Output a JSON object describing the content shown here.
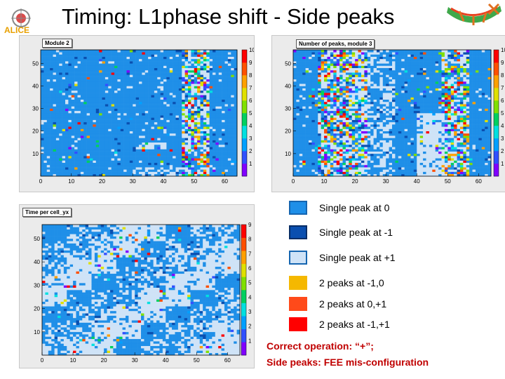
{
  "slide": {
    "title": "Timing: L1phase shift - Side peaks",
    "logo_text": "ALICE"
  },
  "colors": {
    "single_0": "#1f8fe8",
    "single_m1": "#0a4fb0",
    "single_p1": "#cfe3f7",
    "peaks_m1_0": "#f5b800",
    "peaks_0_p1": "#ff4a1a",
    "peaks_m1_p1": "#ff0000",
    "frame_bg": "#ebebeb"
  },
  "chart_data": [
    {
      "type": "heatmap",
      "title": "Module 2",
      "xlim": [
        0,
        64
      ],
      "ylim": [
        0,
        56
      ],
      "zlim": [
        0,
        10
      ],
      "x_ticks": [
        "0",
        "10",
        "20",
        "30",
        "40",
        "50",
        "60"
      ],
      "y_ticks": [
        "10",
        "20",
        "30",
        "40",
        "50"
      ],
      "z_ticks": [
        "1",
        "2",
        "3",
        "4",
        "5",
        "6",
        "7",
        "8",
        "9",
        "10"
      ],
      "colorbar": "right"
    },
    {
      "type": "heatmap",
      "title": "Number of peaks, module 3",
      "xlim": [
        0,
        64
      ],
      "ylim": [
        0,
        56
      ],
      "zlim": [
        0,
        10
      ],
      "x_ticks": [
        "0",
        "10",
        "20",
        "30",
        "40",
        "50",
        "60"
      ],
      "y_ticks": [
        "10",
        "20",
        "30",
        "40",
        "50"
      ],
      "z_ticks": [
        "1",
        "2",
        "3",
        "4",
        "5",
        "6",
        "7",
        "8",
        "9",
        "10"
      ],
      "colorbar": "right"
    },
    {
      "type": "heatmap",
      "title": "Time per cell_yx",
      "xlim": [
        0,
        64
      ],
      "ylim": [
        0,
        56
      ],
      "zlim": [
        0,
        9
      ],
      "x_ticks": [
        "0",
        "10",
        "20",
        "30",
        "40",
        "50",
        "60"
      ],
      "y_ticks": [
        "10",
        "20",
        "30",
        "40",
        "50"
      ],
      "z_ticks": [
        "1",
        "2",
        "3",
        "4",
        "5",
        "6",
        "7",
        "8",
        "9"
      ],
      "colorbar": "right"
    }
  ],
  "legend": [
    {
      "label": "Single peak at 0",
      "color": "#1f8fe8",
      "border": "#1565b0"
    },
    {
      "label": "Single peak at -1",
      "color": "#0a4fb0",
      "border": "#062d66"
    },
    {
      "label": "Single peak at +1",
      "color": "#cfe3f7",
      "border": "#1565b0"
    },
    {
      "label": "2 peaks at -1,0",
      "color": "#f5b800",
      "border": "#f5b800"
    },
    {
      "label": "2 peaks at 0,+1",
      "color": "#ff4a1a",
      "border": "#ff4a1a"
    },
    {
      "label": "2 peaks at -1,+1",
      "color": "#ff0000",
      "border": "#ff0000"
    }
  ],
  "notes": {
    "line1": "Correct operation: “+”;",
    "line2": "Side peaks: FEE mis-configuration"
  }
}
